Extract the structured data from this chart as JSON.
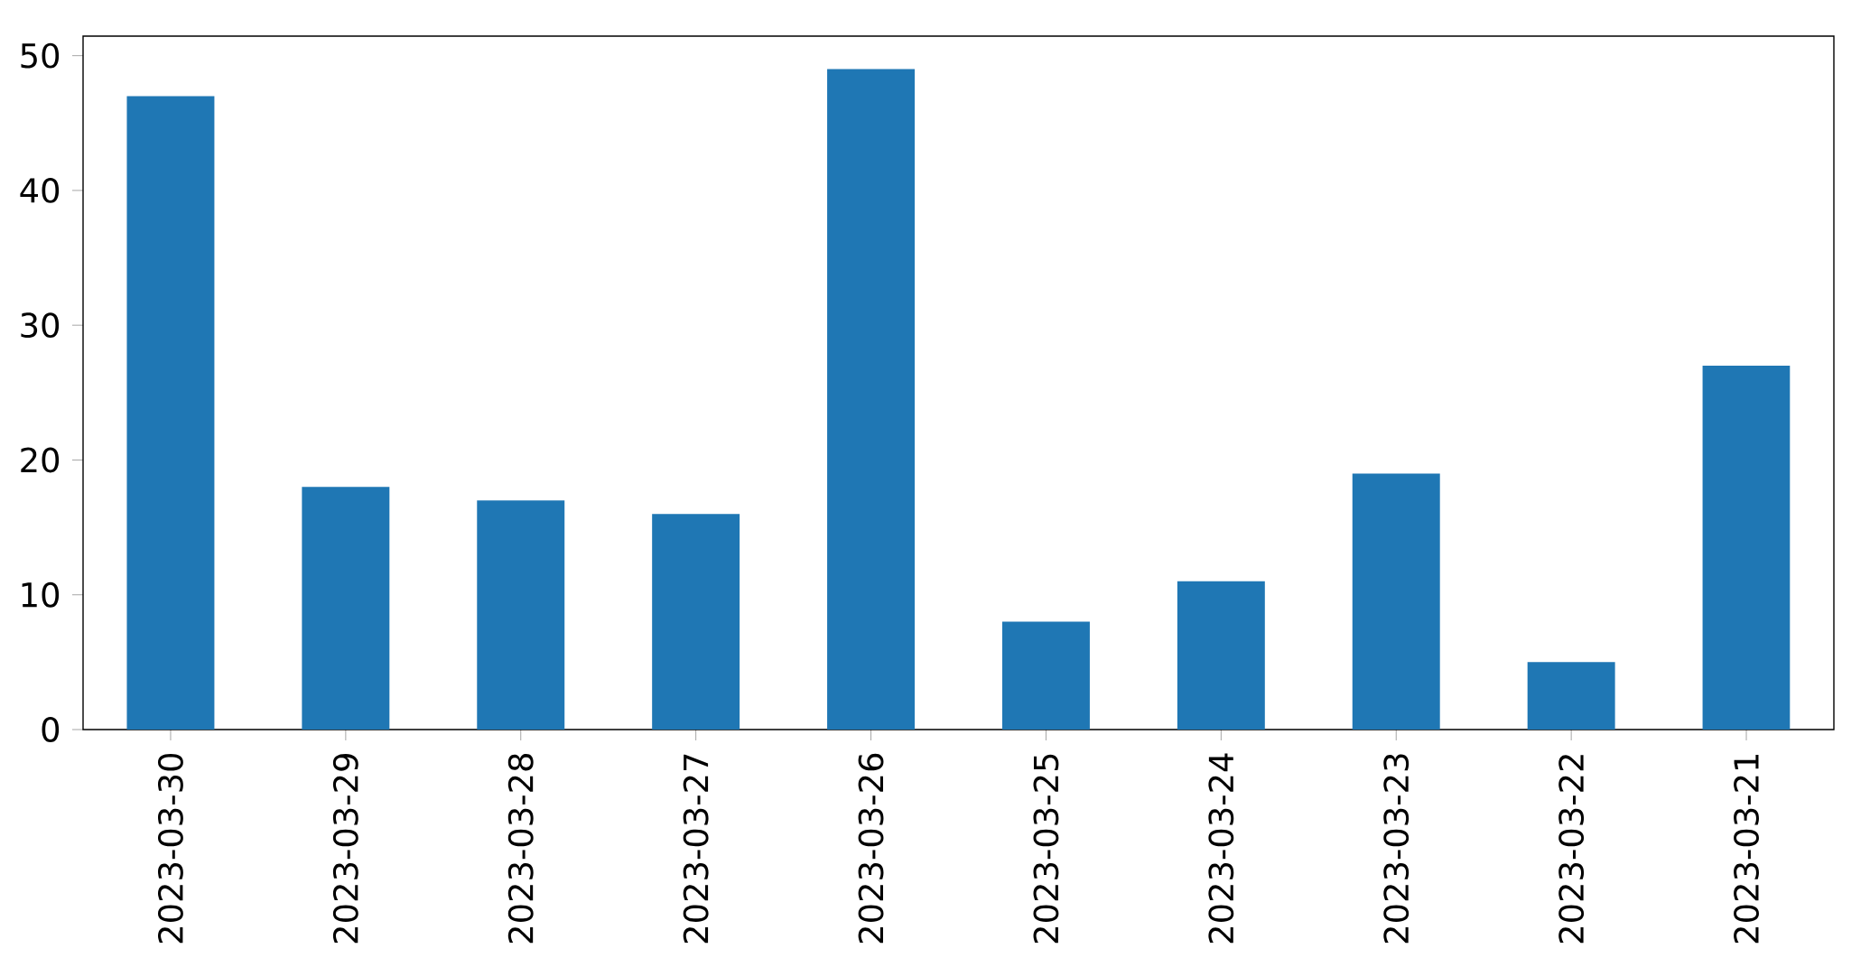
{
  "chart_data": {
    "type": "bar",
    "categories": [
      "2023-03-30",
      "2023-03-29",
      "2023-03-28",
      "2023-03-27",
      "2023-03-26",
      "2023-03-25",
      "2023-03-24",
      "2023-03-23",
      "2023-03-22",
      "2023-03-21"
    ],
    "values": [
      47,
      18,
      17,
      16,
      49,
      8,
      11,
      19,
      5,
      27
    ],
    "color": "#1f77b4",
    "ylim": [
      0,
      51.45
    ],
    "yticks": [
      0,
      10,
      20,
      30,
      40,
      50
    ]
  }
}
